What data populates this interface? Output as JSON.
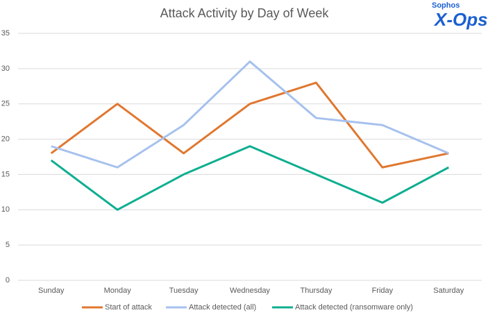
{
  "chart_data": {
    "type": "line",
    "title": "Attack Activity by Day of Week",
    "categories": [
      "Sunday",
      "Monday",
      "Tuesday",
      "Wednesday",
      "Thursday",
      "Friday",
      "Saturday"
    ],
    "series": [
      {
        "name": "Start of attack",
        "color": "#e0772f",
        "values": [
          18,
          25,
          18,
          25,
          28,
          16,
          18
        ]
      },
      {
        "name": "Attack detected (all)",
        "color": "#a6c1ee",
        "values": [
          19,
          16,
          22,
          31,
          23,
          22,
          18
        ]
      },
      {
        "name": "Attack detected (ransomware only)",
        "color": "#0eae90",
        "values": [
          17,
          10,
          15,
          19,
          15,
          11,
          16
        ]
      }
    ],
    "ylim": [
      0,
      35
    ],
    "yticks": [
      0,
      5,
      10,
      15,
      20,
      25,
      30,
      35
    ],
    "grid": true,
    "legend": "bottom"
  },
  "logo": {
    "top": "Sophos",
    "main": "X-Ops"
  }
}
